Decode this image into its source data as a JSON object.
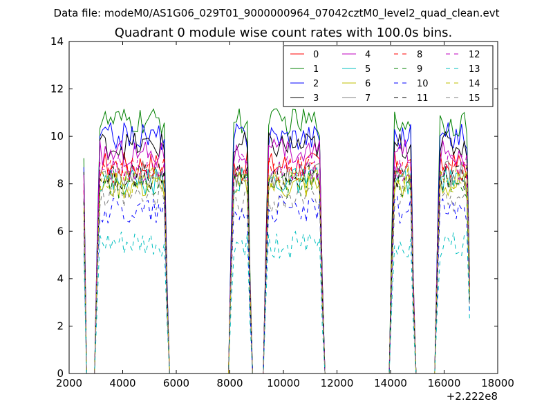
{
  "chart_data": {
    "type": "line",
    "suptitle": "Data file: modeM0/AS1G06_029T01_9000000964_07042cztM0_level2_quad_clean.evt",
    "title": "Quadrant 0 module wise count rates with 100.0s bins.",
    "xlabel": "",
    "ylabel": "",
    "x_offset_label": "+2.222e8",
    "xlim": [
      2000,
      18000
    ],
    "ylim": [
      0,
      14
    ],
    "xticks": [
      2000,
      4000,
      6000,
      8000,
      10000,
      12000,
      14000,
      16000,
      18000
    ],
    "yticks": [
      0,
      2,
      4,
      6,
      8,
      10,
      12,
      14
    ],
    "legend_position": "top-right",
    "grid": false,
    "segments": [
      {
        "start": 3050,
        "end": 5650
      },
      {
        "start": 8050,
        "end": 8750
      },
      {
        "start": 9350,
        "end": 11450
      },
      {
        "start": 14050,
        "end": 14850
      },
      {
        "start": 15750,
        "end": 16950
      }
    ],
    "series": [
      {
        "name": "0",
        "color": "#ff0000",
        "dash": "solid",
        "level": 8.8
      },
      {
        "name": "1",
        "color": "#008000",
        "dash": "solid",
        "level": 10.6
      },
      {
        "name": "2",
        "color": "#0000ff",
        "dash": "solid",
        "level": 10.0
      },
      {
        "name": "3",
        "color": "#000000",
        "dash": "solid",
        "level": 9.6
      },
      {
        "name": "4",
        "color": "#bf00bf",
        "dash": "solid",
        "level": 9.3
      },
      {
        "name": "5",
        "color": "#00bfbf",
        "dash": "solid",
        "level": 8.1
      },
      {
        "name": "6",
        "color": "#bfbf00",
        "dash": "solid",
        "level": 7.9
      },
      {
        "name": "7",
        "color": "#808080",
        "dash": "solid",
        "level": 8.4
      },
      {
        "name": "8",
        "color": "#ff0000",
        "dash": "dashed",
        "level": 8.6
      },
      {
        "name": "9",
        "color": "#008000",
        "dash": "dashed",
        "level": 8.0
      },
      {
        "name": "10",
        "color": "#0000ff",
        "dash": "dashed",
        "level": 6.9
      },
      {
        "name": "11",
        "color": "#000000",
        "dash": "dashed",
        "level": 8.3
      },
      {
        "name": "12",
        "color": "#bf00bf",
        "dash": "dashed",
        "level": 8.7
      },
      {
        "name": "13",
        "color": "#00bfbf",
        "dash": "dashed",
        "level": 5.4
      },
      {
        "name": "14",
        "color": "#bfbf00",
        "dash": "dashed",
        "level": 8.2
      },
      {
        "name": "15",
        "color": "#808080",
        "dash": "dashed",
        "level": 7.3
      }
    ]
  }
}
